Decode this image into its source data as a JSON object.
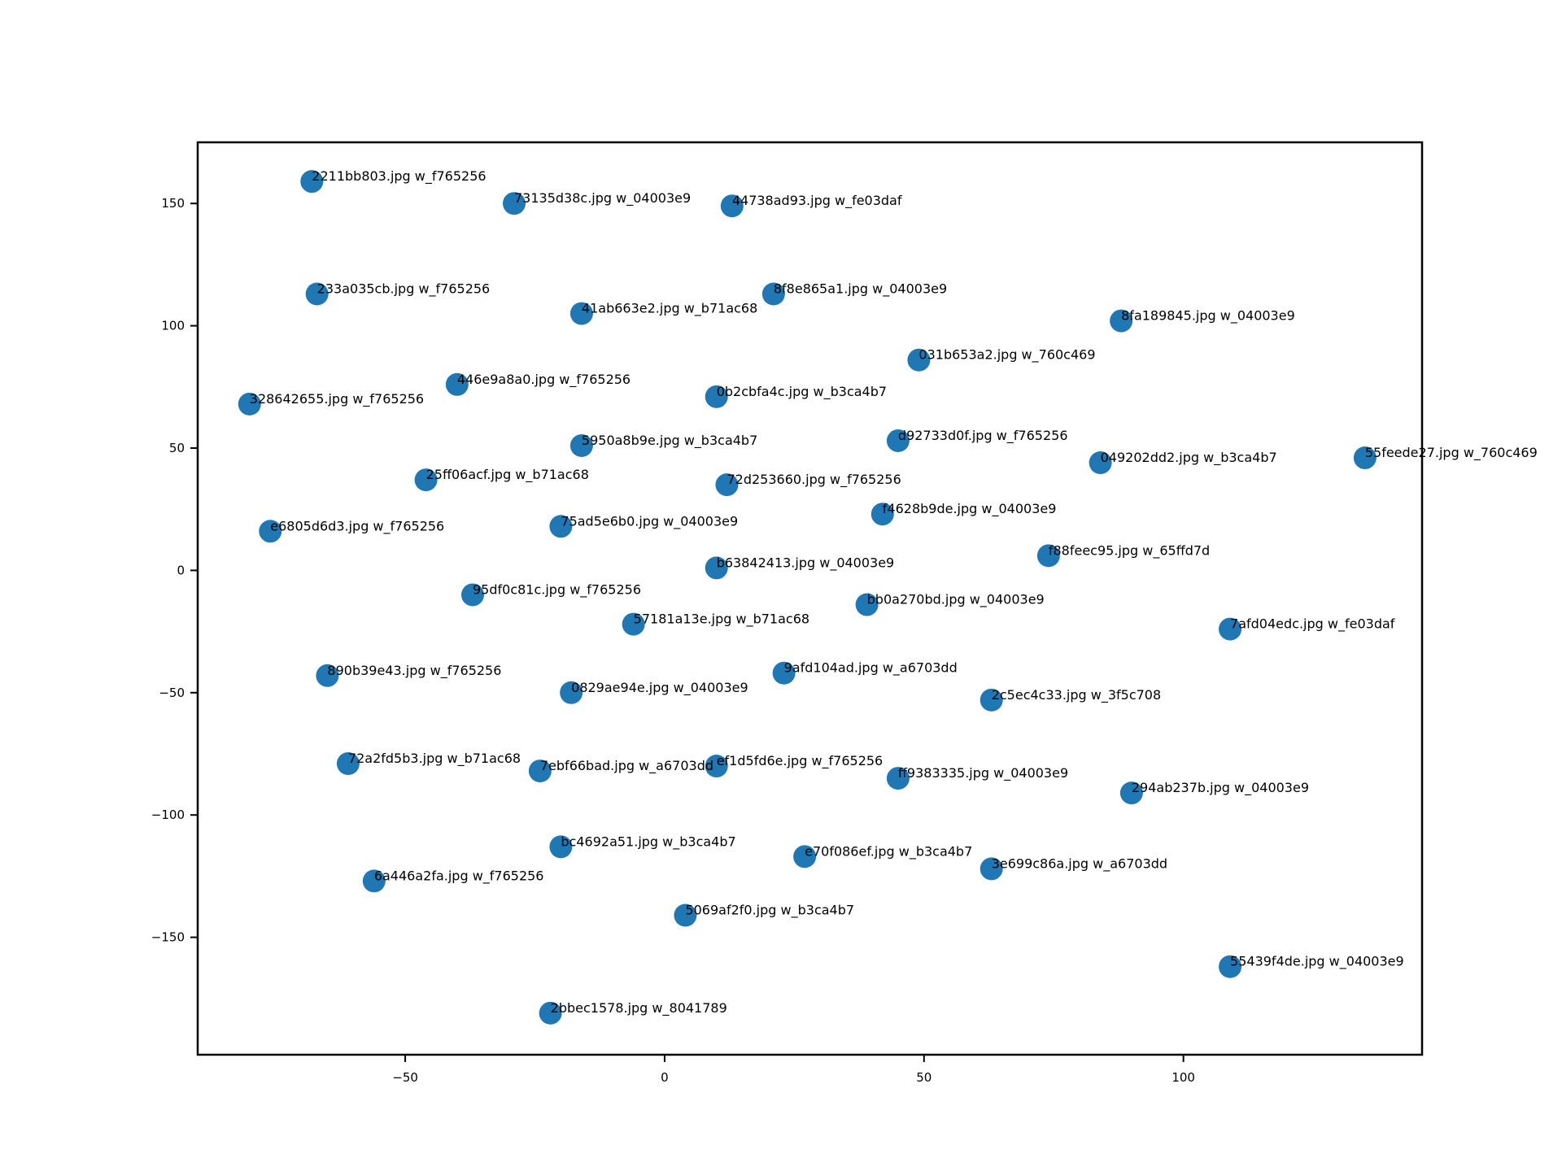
{
  "chart_data": {
    "type": "scatter",
    "title": "",
    "xlabel": "",
    "ylabel": "",
    "xlim": [
      -90,
      146
    ],
    "ylim": [
      -198,
      175
    ],
    "xticks": [
      -50,
      0,
      50,
      100
    ],
    "yticks": [
      -150,
      -100,
      -50,
      0,
      50,
      100,
      150
    ],
    "xtick_labels": [
      "−50",
      "0",
      "50",
      "100"
    ],
    "ytick_labels": [
      "−150",
      "−100",
      "−50",
      "0",
      "50",
      "100",
      "150"
    ],
    "grid": false,
    "legend": "none",
    "color": "#1f77b4",
    "points": [
      {
        "x": -68,
        "y": 159,
        "label": "2211bb803.jpg w_f765256"
      },
      {
        "x": -29,
        "y": 150,
        "label": "73135d38c.jpg w_04003e9"
      },
      {
        "x": 13,
        "y": 149,
        "label": "44738ad93.jpg w_fe03daf"
      },
      {
        "x": -67,
        "y": 113,
        "label": "233a035cb.jpg w_f765256"
      },
      {
        "x": 21,
        "y": 113,
        "label": "8f8e865a1.jpg w_04003e9"
      },
      {
        "x": -16,
        "y": 105,
        "label": "41ab663e2.jpg w_b71ac68"
      },
      {
        "x": 88,
        "y": 102,
        "label": "8fa189845.jpg w_04003e9"
      },
      {
        "x": 49,
        "y": 86,
        "label": "031b653a2.jpg w_760c469"
      },
      {
        "x": -40,
        "y": 76,
        "label": "446e9a8a0.jpg w_f765256"
      },
      {
        "x": -80,
        "y": 68,
        "label": "328642655.jpg w_f765256"
      },
      {
        "x": 10,
        "y": 71,
        "label": "0b2cbfa4c.jpg w_b3ca4b7"
      },
      {
        "x": -16,
        "y": 51,
        "label": "5950a8b9e.jpg w_b3ca4b7"
      },
      {
        "x": 45,
        "y": 53,
        "label": "d92733d0f.jpg w_f765256"
      },
      {
        "x": 84,
        "y": 44,
        "label": "049202dd2.jpg w_b3ca4b7"
      },
      {
        "x": 135,
        "y": 46,
        "label": "55feede27.jpg w_760c469"
      },
      {
        "x": -46,
        "y": 37,
        "label": "25ff06acf.jpg w_b71ac68"
      },
      {
        "x": 12,
        "y": 35,
        "label": "72d253660.jpg w_f765256"
      },
      {
        "x": 42,
        "y": 23,
        "label": "f4628b9de.jpg w_04003e9"
      },
      {
        "x": -76,
        "y": 16,
        "label": "e6805d6d3.jpg w_f765256"
      },
      {
        "x": -20,
        "y": 18,
        "label": "75ad5e6b0.jpg w_04003e9"
      },
      {
        "x": 74,
        "y": 6,
        "label": "f88feec95.jpg w_65ffd7d"
      },
      {
        "x": 10,
        "y": 1,
        "label": "b63842413.jpg w_04003e9"
      },
      {
        "x": -37,
        "y": -10,
        "label": "95df0c81c.jpg w_f765256"
      },
      {
        "x": 39,
        "y": -14,
        "label": "bb0a270bd.jpg w_04003e9"
      },
      {
        "x": -6,
        "y": -22,
        "label": "57181a13e.jpg w_b71ac68"
      },
      {
        "x": 109,
        "y": -24,
        "label": "7afd04edc.jpg w_fe03daf"
      },
      {
        "x": -65,
        "y": -43,
        "label": "890b39e43.jpg w_f765256"
      },
      {
        "x": 23,
        "y": -42,
        "label": "9afd104ad.jpg w_a6703dd"
      },
      {
        "x": -18,
        "y": -50,
        "label": "0829ae94e.jpg w_04003e9"
      },
      {
        "x": 63,
        "y": -53,
        "label": "2c5ec4c33.jpg w_3f5c708"
      },
      {
        "x": -61,
        "y": -79,
        "label": "72a2fd5b3.jpg w_b71ac68"
      },
      {
        "x": -24,
        "y": -82,
        "label": "7ebf66bad.jpg w_a6703dd"
      },
      {
        "x": 10,
        "y": -80,
        "label": "ef1d5fd6e.jpg w_f765256"
      },
      {
        "x": 45,
        "y": -85,
        "label": "ff9383335.jpg w_04003e9"
      },
      {
        "x": 90,
        "y": -91,
        "label": "294ab237b.jpg w_04003e9"
      },
      {
        "x": -20,
        "y": -113,
        "label": "bc4692a51.jpg w_b3ca4b7"
      },
      {
        "x": 27,
        "y": -117,
        "label": "e70f086ef.jpg w_b3ca4b7"
      },
      {
        "x": 63,
        "y": -122,
        "label": "3e699c86a.jpg w_a6703dd"
      },
      {
        "x": -56,
        "y": -127,
        "label": "6a446a2fa.jpg w_f765256"
      },
      {
        "x": 4,
        "y": -141,
        "label": "5069af2f0.jpg w_b3ca4b7"
      },
      {
        "x": 109,
        "y": -162,
        "label": "55439f4de.jpg w_04003e9"
      },
      {
        "x": -22,
        "y": -181,
        "label": "2bbec1578.jpg w_8041789"
      }
    ]
  }
}
